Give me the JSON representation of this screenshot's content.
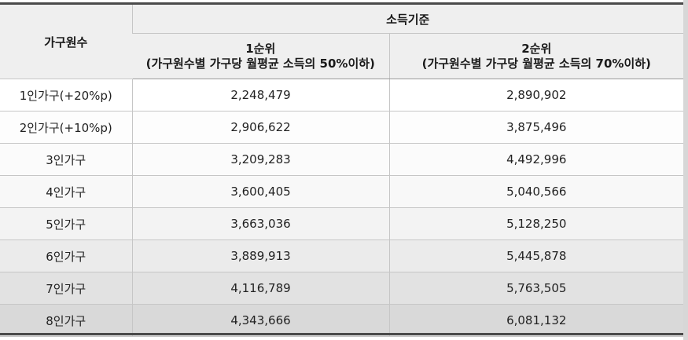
{
  "table": {
    "household_header": "가구원수",
    "criteria_header": "소득기준",
    "rank1": {
      "title": "1순위",
      "subtitle": "(가구원수별 가구당 월평균 소득의 50%이하)"
    },
    "rank2": {
      "title": "2순위",
      "subtitle": "(가구원수별 가구당 월평균 소득의 70%이하)"
    },
    "rows": [
      {
        "household": "1인가구(+20%p)",
        "rank1": "2,248,479",
        "rank2": "2,890,902"
      },
      {
        "household": "2인가구(+10%p)",
        "rank1": "2,906,622",
        "rank2": "3,875,496"
      },
      {
        "household": "3인가구",
        "rank1": "3,209,283",
        "rank2": "4,492,996"
      },
      {
        "household": "4인가구",
        "rank1": "3,600,405",
        "rank2": "5,040,566"
      },
      {
        "household": "5인가구",
        "rank1": "3,663,036",
        "rank2": "5,128,250"
      },
      {
        "household": "6인가구",
        "rank1": "3,889,913",
        "rank2": "5,445,878"
      },
      {
        "household": "7인가구",
        "rank1": "4,116,789",
        "rank2": "5,763,505"
      },
      {
        "household": "8인가구",
        "rank1": "4,343,666",
        "rank2": "6,081,132"
      }
    ]
  }
}
